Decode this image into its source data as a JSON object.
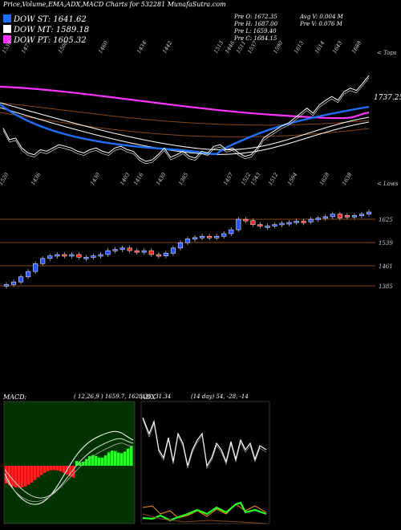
{
  "header": {
    "title": "Price,Volume,EMA,ADX,MACD Charts for 532281 MunafaSutra.com"
  },
  "legend": [
    {
      "label": "DOW ST: 1641.62",
      "color": "#1e6fff"
    },
    {
      "label": "DOW MT: 1589.18",
      "color": "#ffffff"
    },
    {
      "label": "DOW PT: 1605.32",
      "color": "#ff33ff"
    }
  ],
  "quote": {
    "line1": "Pre   O: 1672.35",
    "line2": "Pre   H: 1687.00",
    "line3": "Pre   L: 1659.40",
    "line4": "Pre   C: 1684.15",
    "avg": "Avg V: 0.004  M",
    "prev": "Pre   V: 0.076  M"
  },
  "ema_panel": {
    "right_tag": "< Tops",
    "top_labels": [
      "1530",
      "1477",
      "1500",
      "1460",
      "1434",
      "1442",
      "1513",
      "1446",
      "1511",
      "1537",
      "1590",
      "1613",
      "1614",
      "1643",
      "1688"
    ],
    "last_value": "1737.25",
    "colors": {
      "price": "#ffffff",
      "short": "#1e6fff",
      "mid": "#ffffff",
      "long": "#ff33ff",
      "lines": "#8b4513"
    }
  },
  "candle_panel": {
    "right_tag": "< Lows",
    "low_labels": [
      "1520",
      "1436",
      "1430",
      "1403",
      "1416",
      "1430",
      "1385",
      "1457",
      "1522",
      "1543",
      "1512",
      "1594",
      "1628",
      "1638"
    ],
    "y_ticks": [
      "1625",
      "1539",
      "1461",
      "1385"
    ],
    "up_color": "#2255ff",
    "down_color": "#ff2222"
  },
  "macd": {
    "label": "MACD:",
    "params": "( 12,26,9 ) 1659.7,  1628.36,  31.34",
    "hist_pos": "#22ff22",
    "hist_neg": "#ff2222"
  },
  "adx": {
    "label": "ADX",
    "params": "(14  day) 54,  -28,  -14"
  },
  "chart_data": [
    {
      "type": "line",
      "name": "ema",
      "series": [
        {
          "name": "",
          "values": [
            1530,
            1495,
            1500,
            1470,
            1455,
            1450,
            1465,
            1460,
            1470,
            1480,
            1475,
            1470,
            1460,
            1455,
            1465,
            1470,
            1460,
            1455,
            1470,
            1475,
            1465,
            1460,
            1440,
            1430,
            1434,
            1450,
            1470,
            1442,
            1450,
            1460,
            1445,
            1440,
            1460,
            1455,
            1475,
            1480,
            1465,
            1470,
            1455,
            1445,
            1450,
            1470,
            1500,
            1513,
            1525,
            1537,
            1545,
            1560,
            1575,
            1590,
            1575,
            1600,
            1613,
            1625,
            1614,
            1640,
            1650,
            1643,
            1665,
            1688
          ]
        }
      ]
    },
    {
      "type": "candlestick",
      "name": "price",
      "opens": [
        1385,
        1390,
        1400,
        1420,
        1440,
        1470,
        1490,
        1500,
        1505,
        1500,
        1505,
        1495,
        1495,
        1500,
        1505,
        1520,
        1525,
        1530,
        1520,
        1515,
        1520,
        1505,
        1500,
        1510,
        1530,
        1550,
        1565,
        1570,
        1575,
        1572,
        1575,
        1585,
        1600,
        1640,
        1635,
        1620,
        1615,
        1615,
        1620,
        1625,
        1628,
        1633,
        1630,
        1640,
        1645,
        1650,
        1660,
        1655,
        1650,
        1655,
        1660
      ],
      "closes": [
        1390,
        1400,
        1420,
        1440,
        1470,
        1490,
        1500,
        1505,
        1500,
        1505,
        1495,
        1495,
        1500,
        1505,
        1520,
        1525,
        1530,
        1520,
        1515,
        1520,
        1505,
        1500,
        1510,
        1530,
        1550,
        1565,
        1570,
        1575,
        1572,
        1575,
        1585,
        1600,
        1640,
        1635,
        1620,
        1615,
        1615,
        1620,
        1625,
        1628,
        1633,
        1630,
        1640,
        1645,
        1650,
        1660,
        1645,
        1650,
        1655,
        1660,
        1668
      ]
    }
  ]
}
